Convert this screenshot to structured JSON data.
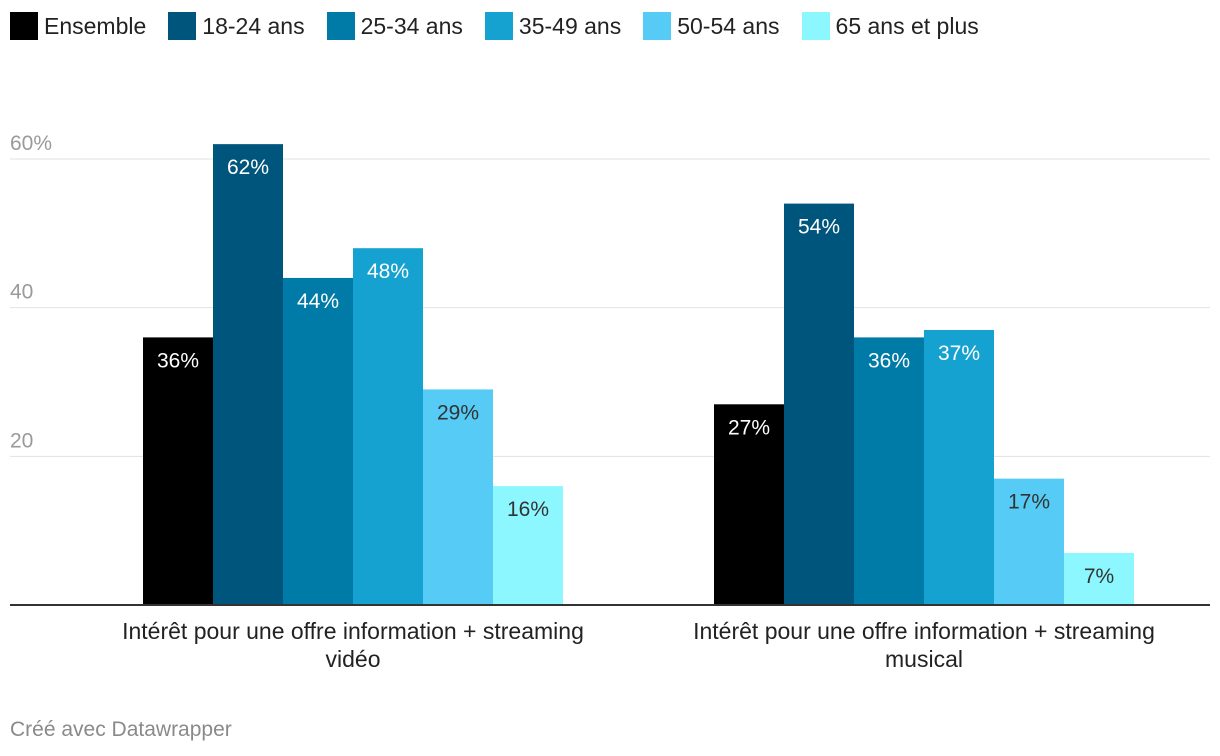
{
  "chart_data": {
    "type": "bar",
    "categories": [
      "Intérêt pour une offre information + streaming vidéo",
      "Intérêt pour une offre information + streaming musical"
    ],
    "category_lines": [
      [
        "Intérêt pour une offre information + streaming",
        "vidéo"
      ],
      [
        "Intérêt pour une offre information + streaming",
        "musical"
      ]
    ],
    "series": [
      {
        "name": "Ensemble",
        "color": "#000000",
        "values": [
          36,
          27
        ],
        "labels": [
          "36%",
          "27%"
        ],
        "label_color": "#ffffff"
      },
      {
        "name": "18-24 ans",
        "color": "#00557c",
        "values": [
          62,
          54
        ],
        "labels": [
          "62%",
          "54%"
        ],
        "label_color": "#ffffff"
      },
      {
        "name": "25-34 ans",
        "color": "#007aa6",
        "values": [
          44,
          36
        ],
        "labels": [
          "44%",
          "36%"
        ],
        "label_color": "#ffffff"
      },
      {
        "name": "35-49 ans",
        "color": "#16a2d0",
        "values": [
          48,
          37
        ],
        "labels": [
          "48%",
          "37%"
        ],
        "label_color": "#ffffff"
      },
      {
        "name": "50-54 ans",
        "color": "#55cbf5",
        "values": [
          29,
          17
        ],
        "labels": [
          "29%",
          "17%"
        ],
        "label_color": "#333333"
      },
      {
        "name": "65 ans et plus",
        "color": "#8df7ff",
        "values": [
          16,
          7
        ],
        "labels": [
          "16%",
          "7%"
        ],
        "label_color": "#333333"
      }
    ],
    "yticks": [
      {
        "value": 20,
        "label": "20"
      },
      {
        "value": 40,
        "label": "40"
      },
      {
        "value": 60,
        "label": "60%"
      }
    ],
    "ylim": [
      0,
      60
    ],
    "grid": true,
    "legend_position": "top-left"
  },
  "footer": {
    "credit": "Créé avec Datawrapper"
  }
}
